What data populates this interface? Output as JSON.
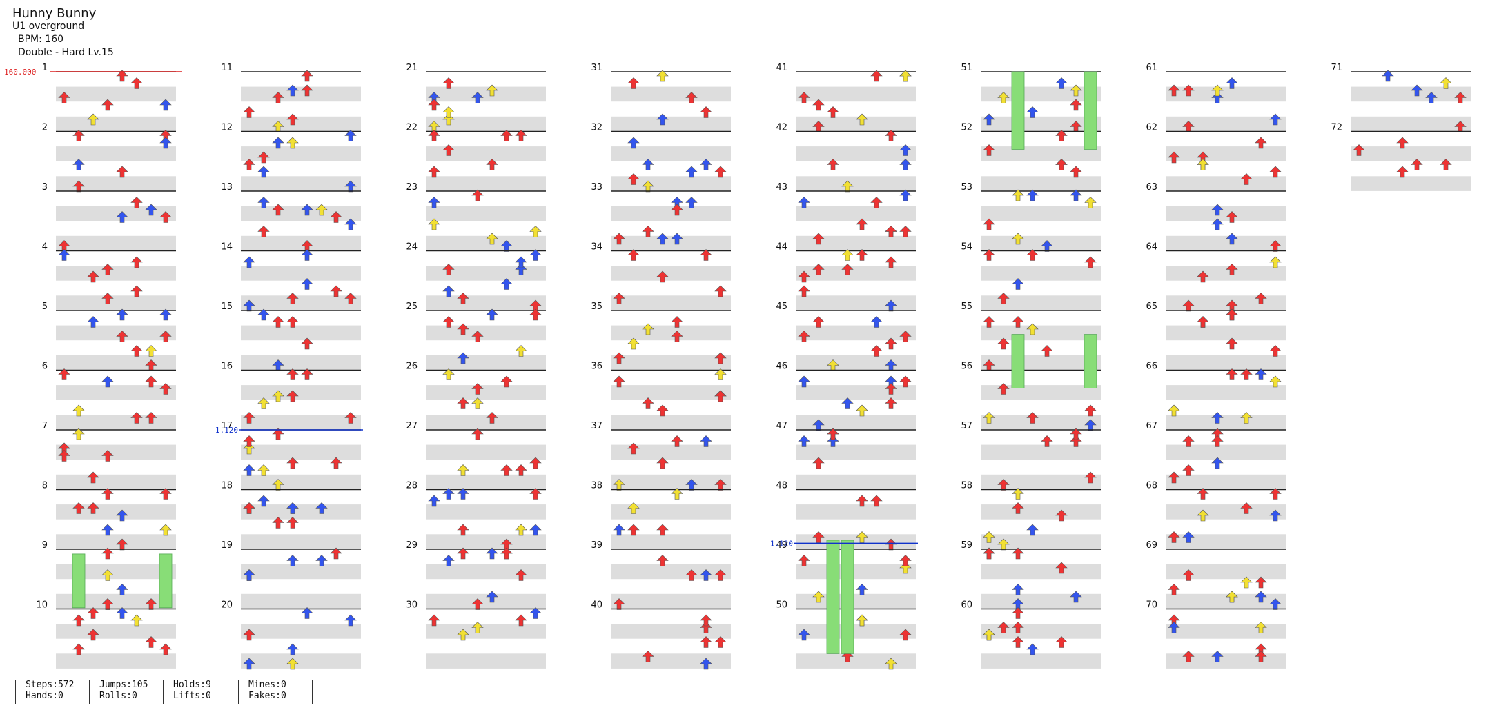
{
  "header": {
    "title": "Hunny Bunny",
    "artist": "U1 overground",
    "bpm": "BPM: 160",
    "difficulty": "Double - Hard Lv.15"
  },
  "chart": {
    "measures": 72,
    "measures_per_column": 10,
    "bpm_marker": "160.000",
    "speed_markers": [
      {
        "measure": 17,
        "label": "1.120"
      },
      {
        "measure": 48.9,
        "label": "1.120"
      }
    ],
    "colors": {
      "red": "#ee3333",
      "blue": "#3355ee",
      "yellow": "#f2e033",
      "green": "#88dd77",
      "bpm": "#dd2222",
      "speed": "#1133cc"
    }
  },
  "stats": {
    "steps": "Steps:572",
    "hands": "Hands:0",
    "jumps": "Jumps:105",
    "rolls": "Rolls:0",
    "holds": "Holds:9",
    "lifts": "Lifts:0",
    "mines": "Mines:0",
    "fakes": "Fakes:0"
  }
}
